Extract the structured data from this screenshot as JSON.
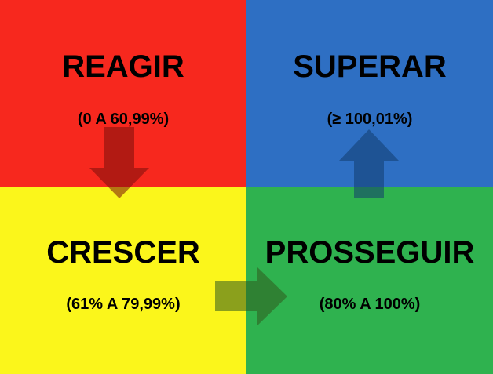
{
  "quadrants": {
    "top_left": {
      "title": "REAGIR",
      "range": "(0 A 60,99%)",
      "color": "#f7281e"
    },
    "top_right": {
      "title": "SUPERAR",
      "range": "(≥ 100,01%)",
      "color": "#2e6fc3"
    },
    "bottom_left": {
      "title": "CRESCER",
      "range": "(61% A 79,99%)",
      "color": "#fbf61b"
    },
    "bottom_right": {
      "title": "PROSSEGUIR",
      "range": "(80% A 100%)",
      "color": "#2fb24f"
    }
  },
  "arrows": [
    {
      "from": "REAGIR",
      "to": "CRESCER",
      "direction": "down",
      "color": "#7a0f0b"
    },
    {
      "from": "CRESCER",
      "to": "PROSSEGUIR",
      "direction": "right",
      "color": "#2f5a1e"
    },
    {
      "from": "PROSSEGUIR",
      "to": "SUPERAR",
      "direction": "up",
      "color": "#133d6e"
    }
  ]
}
